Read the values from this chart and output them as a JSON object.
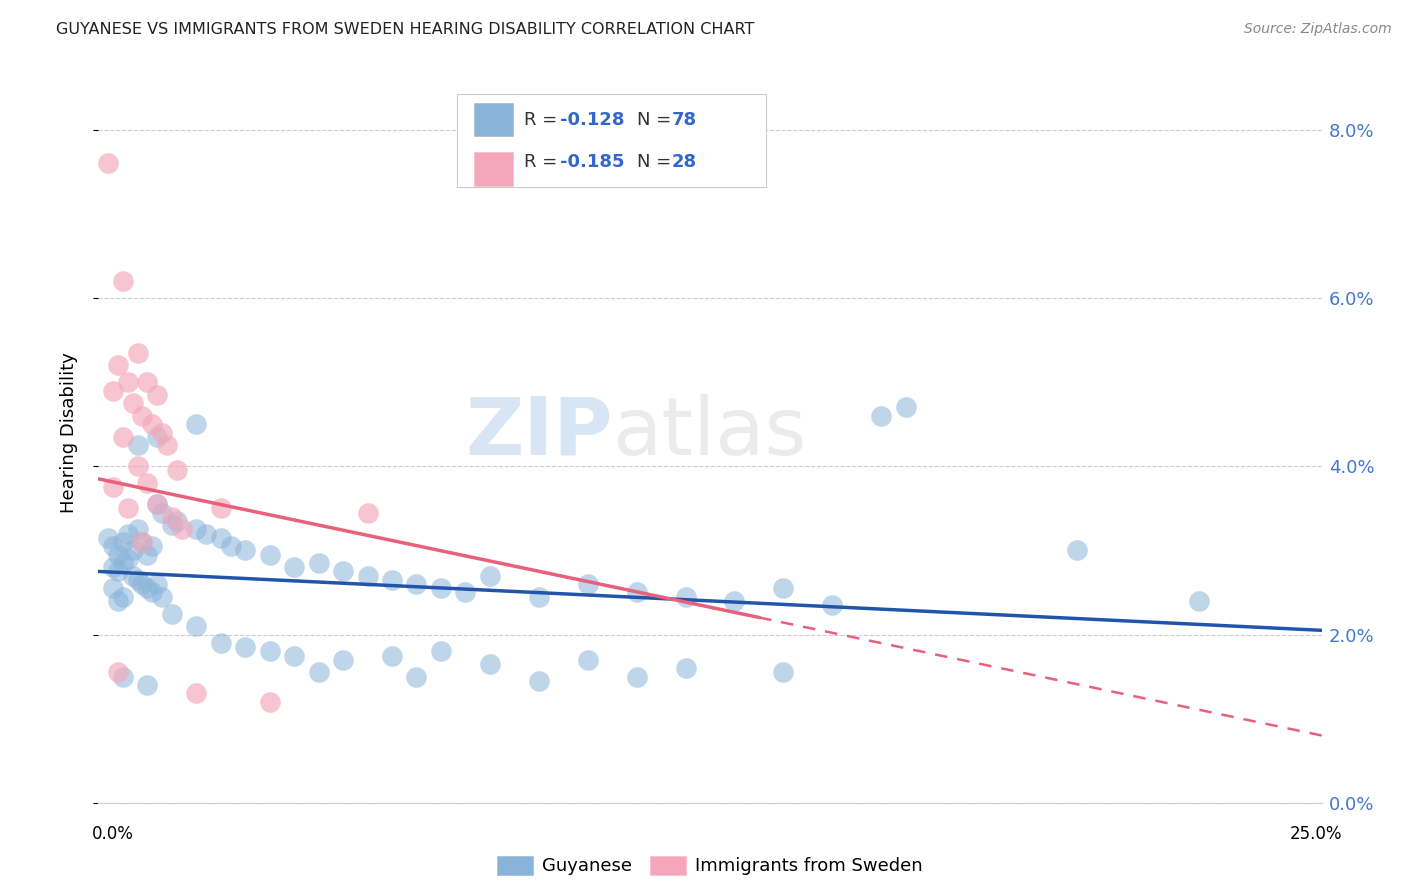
{
  "title": "GUYANESE VS IMMIGRANTS FROM SWEDEN HEARING DISABILITY CORRELATION CHART",
  "source": "Source: ZipAtlas.com",
  "ylabel": "Hearing Disability",
  "ytick_vals": [
    0.0,
    2.0,
    4.0,
    6.0,
    8.0
  ],
  "xlim": [
    0.0,
    25.0
  ],
  "ylim": [
    0.0,
    8.8
  ],
  "blue_color": "#89B4D9",
  "pink_color": "#F4A7B9",
  "blue_line_color": "#2255AA",
  "pink_line_color": "#E8607A",
  "blue_scatter": [
    [
      0.2,
      3.15
    ],
    [
      0.3,
      3.05
    ],
    [
      0.4,
      2.95
    ],
    [
      0.5,
      3.1
    ],
    [
      0.6,
      3.2
    ],
    [
      0.7,
      3.0
    ],
    [
      0.8,
      3.25
    ],
    [
      0.9,
      3.1
    ],
    [
      1.0,
      2.95
    ],
    [
      1.1,
      3.05
    ],
    [
      0.3,
      2.8
    ],
    [
      0.4,
      2.75
    ],
    [
      0.5,
      2.85
    ],
    [
      0.6,
      2.9
    ],
    [
      0.7,
      2.7
    ],
    [
      0.8,
      2.65
    ],
    [
      0.9,
      2.6
    ],
    [
      1.0,
      2.55
    ],
    [
      1.1,
      2.5
    ],
    [
      1.2,
      2.6
    ],
    [
      1.3,
      2.45
    ],
    [
      0.3,
      2.55
    ],
    [
      0.4,
      2.4
    ],
    [
      0.5,
      2.45
    ],
    [
      1.2,
      3.55
    ],
    [
      1.3,
      3.45
    ],
    [
      1.5,
      3.3
    ],
    [
      1.6,
      3.35
    ],
    [
      2.0,
      3.25
    ],
    [
      2.2,
      3.2
    ],
    [
      2.5,
      3.15
    ],
    [
      2.7,
      3.05
    ],
    [
      3.0,
      3.0
    ],
    [
      3.5,
      2.95
    ],
    [
      4.0,
      2.8
    ],
    [
      4.5,
      2.85
    ],
    [
      5.0,
      2.75
    ],
    [
      5.5,
      2.7
    ],
    [
      6.0,
      2.65
    ],
    [
      6.5,
      2.6
    ],
    [
      7.0,
      2.55
    ],
    [
      7.5,
      2.5
    ],
    [
      8.0,
      2.7
    ],
    [
      9.0,
      2.45
    ],
    [
      10.0,
      2.6
    ],
    [
      11.0,
      2.5
    ],
    [
      12.0,
      2.45
    ],
    [
      13.0,
      2.4
    ],
    [
      14.0,
      2.55
    ],
    [
      15.0,
      2.35
    ],
    [
      16.5,
      4.7
    ],
    [
      20.0,
      3.0
    ],
    [
      22.5,
      2.4
    ],
    [
      1.5,
      2.25
    ],
    [
      2.0,
      2.1
    ],
    [
      2.5,
      1.9
    ],
    [
      3.0,
      1.85
    ],
    [
      3.5,
      1.8
    ],
    [
      4.0,
      1.75
    ],
    [
      5.0,
      1.7
    ],
    [
      6.0,
      1.75
    ],
    [
      7.0,
      1.8
    ],
    [
      8.0,
      1.65
    ],
    [
      10.0,
      1.7
    ],
    [
      12.0,
      1.6
    ],
    [
      14.0,
      1.55
    ],
    [
      0.5,
      1.5
    ],
    [
      1.0,
      1.4
    ],
    [
      4.5,
      1.55
    ],
    [
      6.5,
      1.5
    ],
    [
      9.0,
      1.45
    ],
    [
      11.0,
      1.5
    ],
    [
      0.8,
      4.25
    ],
    [
      1.2,
      4.35
    ],
    [
      2.0,
      4.5
    ],
    [
      16.0,
      4.6
    ]
  ],
  "pink_scatter": [
    [
      0.2,
      7.6
    ],
    [
      0.5,
      6.2
    ],
    [
      0.8,
      5.35
    ],
    [
      0.4,
      5.2
    ],
    [
      0.6,
      5.0
    ],
    [
      1.0,
      5.0
    ],
    [
      0.3,
      4.9
    ],
    [
      1.2,
      4.85
    ],
    [
      0.7,
      4.75
    ],
    [
      0.9,
      4.6
    ],
    [
      1.1,
      4.5
    ],
    [
      1.3,
      4.4
    ],
    [
      0.5,
      4.35
    ],
    [
      1.4,
      4.25
    ],
    [
      0.8,
      4.0
    ],
    [
      1.6,
      3.95
    ],
    [
      1.0,
      3.8
    ],
    [
      0.3,
      3.75
    ],
    [
      1.2,
      3.55
    ],
    [
      0.6,
      3.5
    ],
    [
      1.5,
      3.4
    ],
    [
      2.5,
      3.5
    ],
    [
      1.7,
      3.25
    ],
    [
      0.9,
      3.1
    ],
    [
      5.5,
      3.45
    ],
    [
      0.4,
      1.55
    ],
    [
      2.0,
      1.3
    ],
    [
      3.5,
      1.2
    ]
  ],
  "blue_trend": {
    "x_start": 0.0,
    "y_start": 2.75,
    "x_end": 25.0,
    "y_end": 2.05
  },
  "pink_trend": {
    "x_start": 0.0,
    "y_start": 3.85,
    "x_end": 25.0,
    "y_end": 0.8
  },
  "pink_dash_x": 13.5
}
